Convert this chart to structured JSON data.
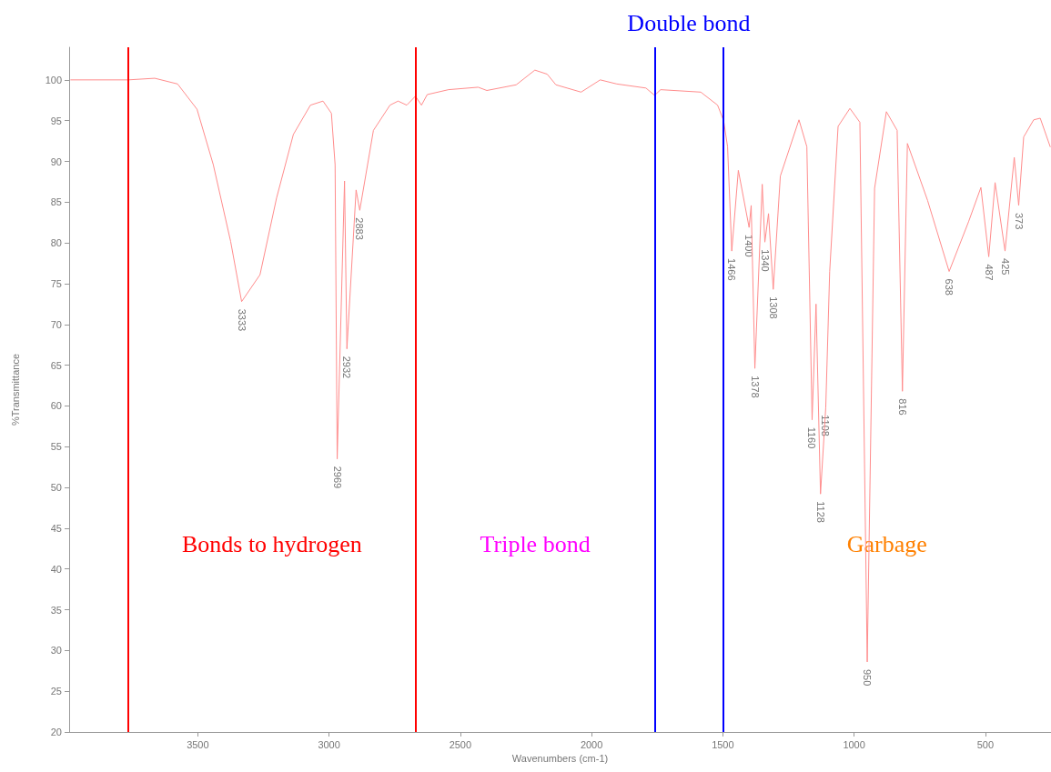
{
  "chart_data": {
    "type": "line",
    "xlabel": "Wavenumbers (cm-1)",
    "ylabel": "%Transmittance",
    "xlim": [
      3990,
      250
    ],
    "xticks": [
      3500,
      3000,
      2500,
      2000,
      1500,
      1000,
      500
    ],
    "ylim": [
      20,
      104
    ],
    "yticks": [
      20,
      25,
      30,
      35,
      40,
      45,
      50,
      55,
      60,
      65,
      70,
      75,
      80,
      85,
      90,
      95,
      100
    ],
    "grid": false,
    "marker": "none",
    "line_style": "solid",
    "series": [
      {
        "color": "#ff8c8c",
        "x": [
          3984,
          3765,
          3664,
          3577,
          3503,
          3441,
          3375,
          3333,
          3263,
          3200,
          3136,
          3071,
          3023,
          2991,
          2977,
          2969,
          2941,
          2932,
          2897,
          2883,
          2831,
          2768,
          2737,
          2704,
          2671,
          2648,
          2626,
          2545,
          2432,
          2399,
          2287,
          2216,
          2169,
          2136,
          2040,
          1967,
          1904,
          1793,
          1760,
          1737,
          1584,
          1520,
          1497,
          1482,
          1466,
          1441,
          1400,
          1392,
          1378,
          1350,
          1340,
          1326,
          1308,
          1281,
          1210,
          1180,
          1160,
          1145,
          1128,
          1108,
          1093,
          1061,
          1016,
          978,
          950,
          922,
          877,
          836,
          816,
          797,
          720,
          638,
          564,
          517,
          487,
          463,
          425,
          390,
          373,
          354,
          316,
          291,
          253
        ],
        "values": [
          100,
          100,
          100.2,
          99.5,
          96.4,
          89.6,
          80.2,
          72.8,
          76.1,
          85.5,
          93.3,
          96.9,
          97.4,
          95.9,
          89.6,
          53.5,
          87.6,
          67,
          86.5,
          84,
          93.8,
          96.9,
          97.4,
          96.9,
          98,
          96.9,
          98.2,
          98.8,
          99.1,
          98.7,
          99.4,
          101.2,
          100.7,
          99.4,
          98.5,
          100,
          99.5,
          99,
          98.1,
          98.8,
          98.5,
          96.9,
          95,
          91.8,
          79,
          88.9,
          81.9,
          84.6,
          64.6,
          87.2,
          80.1,
          83.6,
          74.3,
          88.2,
          95.1,
          91.8,
          58.3,
          72.5,
          49.2,
          59.8,
          76.5,
          94.3,
          96.5,
          94.8,
          28.6,
          86.7,
          96.1,
          93.8,
          61.8,
          92.2,
          85.2,
          76.5,
          82.6,
          86.8,
          78.3,
          87.4,
          79,
          90.5,
          84.6,
          93,
          95.1,
          95.3,
          91.8
        ]
      }
    ],
    "ref_lines": [
      {
        "axis": "x",
        "value": 3765,
        "color": "#ff0000",
        "line_style": "solid"
      },
      {
        "axis": "x",
        "value": 2670,
        "color": "#ff0000",
        "line_style": "solid"
      },
      {
        "axis": "x",
        "value": 1760,
        "color": "#0000ff",
        "line_style": "solid"
      },
      {
        "axis": "x",
        "value": 1500,
        "color": "#0000ff",
        "line_style": "solid"
      }
    ],
    "annotations": [
      "Bonds to hydrogen",
      "Triple bond",
      "Double bond",
      "Garbage",
      {
        "text": "3333",
        "x": 3333,
        "y": 72.8
      },
      {
        "text": "2969",
        "x": 2969,
        "y": 53.5
      },
      {
        "text": "2932",
        "x": 2932,
        "y": 67
      },
      {
        "text": "2883",
        "x": 2883,
        "y": 84
      },
      {
        "text": "1466",
        "x": 1466,
        "y": 79
      },
      {
        "text": "1400",
        "x": 1400,
        "y": 81.9
      },
      {
        "text": "1378",
        "x": 1378,
        "y": 64.6
      },
      {
        "text": "1340",
        "x": 1340,
        "y": 80.1
      },
      {
        "text": "1308",
        "x": 1308,
        "y": 74.3
      },
      {
        "text": "1160",
        "x": 1160,
        "y": 58.3
      },
      {
        "text": "1128",
        "x": 1128,
        "y": 49.2
      },
      {
        "text": "1108",
        "x": 1108,
        "y": 59.8
      },
      {
        "text": "950",
        "x": 950,
        "y": 28.6
      },
      {
        "text": "816",
        "x": 816,
        "y": 61.8
      },
      {
        "text": "638",
        "x": 638,
        "y": 76.5
      },
      {
        "text": "487",
        "x": 487,
        "y": 78.3
      },
      {
        "text": "425",
        "x": 425,
        "y": 79
      },
      {
        "text": "373",
        "x": 373,
        "y": 84.6
      }
    ]
  }
}
